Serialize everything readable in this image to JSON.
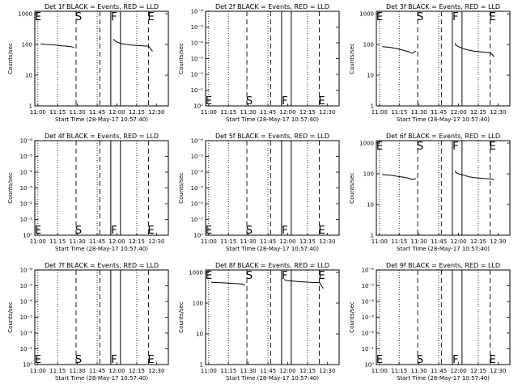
{
  "common": {
    "xlabel": "Start Time (28-May-17 10:57:40)",
    "ylabel": "Counts/sec",
    "x_ticks": [
      "11:00",
      "11:15",
      "11:30",
      "11:45",
      "12:00",
      "12:15",
      "12:30"
    ],
    "markers": [
      "E",
      "S",
      "F",
      "E"
    ],
    "colors": {
      "events": "#000000",
      "lld": "#ff0000",
      "background": "#ffffff"
    }
  },
  "chart_data": [
    {
      "type": "line",
      "title": "Det 1f BLACK = Events, RED = LLD",
      "xlabel": "Start Time (28-May-17 10:57:40)",
      "ylabel": "Counts/sec",
      "yscale": "log",
      "y_ticks": [
        "1",
        "10",
        "100",
        "1000"
      ],
      "xlim": [
        "10:57:40",
        "12:39:00"
      ],
      "ylim": [
        1,
        1200
      ],
      "series": [
        {
          "x": [
            "11:02",
            "11:06",
            "11:10",
            "11:14",
            "11:18",
            "11:22",
            "11:25",
            "11:27:30"
          ],
          "y": [
            105,
            100,
            98,
            95,
            90,
            88,
            85,
            80
          ]
        },
        {
          "x": [
            "11:57:30",
            "11:58",
            "12:00",
            "12:04",
            "12:08",
            "12:12",
            "12:16",
            "12:20",
            "12:24",
            "12:27"
          ],
          "y": [
            150,
            140,
            120,
            105,
            100,
            95,
            92,
            90,
            88,
            60
          ]
        }
      ],
      "markers": {
        "E": "10:59",
        "S": "11:29",
        "F": "11:59",
        "E2": "12:24"
      }
    },
    {
      "type": "line",
      "title": "Det 2f BLACK = Events, RED = LLD",
      "xlabel": "Start Time (28-May-17 10:57:40)",
      "ylabel": "Counts/sec",
      "yscale": "log",
      "y_ticks": [
        "10⁰",
        "10⁻¹",
        "10⁻²",
        "10⁻³",
        "10⁻⁴",
        "10⁻⁵",
        "10⁻⁶"
      ],
      "series": [],
      "markers": {
        "E": "10:59",
        "S": "11:29",
        "F": "11:59",
        "E2": "12:24"
      }
    },
    {
      "type": "line",
      "title": "Det 3f BLACK = Events, RED = LLD",
      "xlabel": "Start Time (28-May-17 10:57:40)",
      "ylabel": "Counts/sec",
      "yscale": "log",
      "y_ticks": [
        "1",
        "10",
        "100",
        "1000"
      ],
      "xlim": [
        "10:57:40",
        "12:39:00"
      ],
      "ylim": [
        1,
        1200
      ],
      "series": [
        {
          "x": [
            "11:02",
            "11:06",
            "11:10",
            "11:14",
            "11:18",
            "11:22",
            "11:25",
            "11:27:30"
          ],
          "y": [
            85,
            82,
            78,
            72,
            65,
            58,
            52,
            60
          ]
        },
        {
          "x": [
            "11:57:30",
            "11:58",
            "12:00",
            "12:04",
            "12:08",
            "12:12",
            "12:16",
            "12:20",
            "12:24",
            "12:27"
          ],
          "y": [
            110,
            95,
            85,
            72,
            65,
            60,
            58,
            56,
            55,
            40
          ]
        }
      ],
      "markers": {
        "E": "10:59",
        "S": "11:29",
        "F": "11:59",
        "E2": "12:24"
      }
    },
    {
      "type": "line",
      "title": "Det 4f BLACK = Events, RED = LLD",
      "xlabel": "Start Time (28-May-17 10:57:40)",
      "ylabel": "Counts/sec",
      "yscale": "log",
      "y_ticks": [
        "10⁰",
        "10⁻¹",
        "10⁻²",
        "10⁻³",
        "10⁻⁴",
        "10⁻⁵",
        "10⁻⁶"
      ],
      "series": [],
      "markers": {
        "E": "10:59",
        "S": "11:29",
        "F": "11:59",
        "E2": "12:24"
      }
    },
    {
      "type": "line",
      "title": "Det 5f BLACK = Events, RED = LLD",
      "xlabel": "Start Time (28-May-17 10:57:40)",
      "ylabel": "Counts/sec",
      "yscale": "log",
      "y_ticks": [
        "10⁰",
        "10⁻¹",
        "10⁻²",
        "10⁻³",
        "10⁻⁴",
        "10⁻⁵",
        "10⁻⁶"
      ],
      "series": [],
      "markers": {
        "E": "10:59",
        "S": "11:29",
        "F": "11:59",
        "E2": "12:24"
      }
    },
    {
      "type": "line",
      "title": "Det 6f BLACK = Events, RED = LLD",
      "xlabel": "Start Time (28-May-17 10:57:40)",
      "ylabel": "Counts/sec",
      "yscale": "log",
      "y_ticks": [
        "1",
        "10",
        "100",
        "1000"
      ],
      "xlim": [
        "10:57:40",
        "12:39:00"
      ],
      "ylim": [
        1,
        1200
      ],
      "series": [
        {
          "x": [
            "11:02",
            "11:06",
            "11:10",
            "11:14",
            "11:18",
            "11:22",
            "11:25",
            "11:27:30"
          ],
          "y": [
            95,
            92,
            88,
            82,
            78,
            72,
            65,
            70
          ]
        },
        {
          "x": [
            "11:57:30",
            "11:58",
            "12:00",
            "12:04",
            "12:08",
            "12:12",
            "12:16",
            "12:20",
            "12:24",
            "12:27"
          ],
          "y": [
            125,
            110,
            100,
            90,
            80,
            75,
            72,
            70,
            68,
            65
          ]
        }
      ],
      "markers": {
        "E": "10:59",
        "S": "11:29",
        "F": "11:59",
        "E2": "12:24"
      }
    },
    {
      "type": "line",
      "title": "Det 7f BLACK = Events, RED = LLD",
      "xlabel": "Start Time (28-May-17 10:57:40)",
      "ylabel": "Counts/sec",
      "yscale": "log",
      "y_ticks": [
        "10⁰",
        "10⁻¹",
        "10⁻²",
        "10⁻³",
        "10⁻⁴",
        "10⁻⁵",
        "10⁻⁶"
      ],
      "series": [],
      "markers": {
        "E": "10:59",
        "S": "11:29",
        "F": "11:59",
        "E2": "12:24"
      }
    },
    {
      "type": "line",
      "title": "Det 8f BLACK = Events, RED = LLD",
      "xlabel": "Start Time (28-May-17 10:57:40)",
      "ylabel": "Counts/sec",
      "yscale": "log",
      "y_ticks": [
        "1",
        "10",
        "100",
        "1000"
      ],
      "xlim": [
        "10:57:40",
        "12:39:00"
      ],
      "ylim": [
        1,
        1200
      ],
      "series": [
        {
          "x": [
            "11:02",
            "11:06",
            "11:10",
            "11:14",
            "11:18",
            "11:22",
            "11:25",
            "11:27:30"
          ],
          "y": [
            480,
            470,
            460,
            450,
            440,
            430,
            420,
            380
          ]
        },
        {
          "x": [
            "11:57:30",
            "11:58",
            "12:00",
            "12:04",
            "12:08",
            "12:12",
            "12:16",
            "12:20",
            "12:24",
            "12:27"
          ],
          "y": [
            600,
            560,
            540,
            520,
            500,
            490,
            480,
            470,
            465,
            300
          ]
        }
      ],
      "markers": {
        "E": "10:59",
        "S": "11:29",
        "F": "11:59",
        "E2": "12:24"
      }
    },
    {
      "type": "line",
      "title": "Det 9f BLACK = Events, RED = LLD",
      "xlabel": "Start Time (28-May-17 10:57:40)",
      "ylabel": "Counts/sec",
      "yscale": "log",
      "y_ticks": [
        "10⁰",
        "10⁻¹",
        "10⁻²",
        "10⁻³",
        "10⁻⁴",
        "10⁻⁵",
        "10⁻⁶"
      ],
      "series": [],
      "markers": {
        "E": "10:59",
        "S": "11:29",
        "F": "11:59",
        "E2": "12:24"
      }
    }
  ]
}
